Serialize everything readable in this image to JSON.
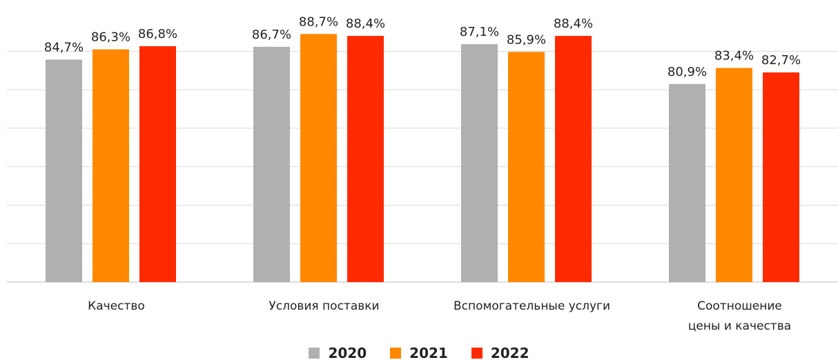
{
  "chart_data": {
    "type": "bar",
    "categories": [
      "Качество",
      "Условия поставки",
      "Вспомогательные услуги",
      "Соотношение\nцены и качества"
    ],
    "series": [
      {
        "name": "2020",
        "color": "#b0b0b0",
        "values": [
          84.7,
          86.7,
          87.1,
          80.9
        ],
        "value_labels": [
          "84,7%",
          "86,7%",
          "87,1%",
          "80,9%"
        ]
      },
      {
        "name": "2021",
        "color": "#ff8800",
        "values": [
          86.3,
          88.7,
          85.9,
          83.4
        ],
        "value_labels": [
          "86,3%",
          "88,7%",
          "85,9%",
          "83,4%"
        ]
      },
      {
        "name": "2022",
        "color": "#ff2a00",
        "values": [
          86.8,
          88.4,
          88.4,
          82.7
        ],
        "value_labels": [
          "86,8%",
          "88,4%",
          "88,4%",
          "82,7%"
        ]
      }
    ],
    "ylim": [
      50,
      94
    ],
    "yticks": [
      50,
      56,
      62,
      68,
      74,
      80,
      86
    ],
    "grid": true,
    "legend": "bottom"
  }
}
